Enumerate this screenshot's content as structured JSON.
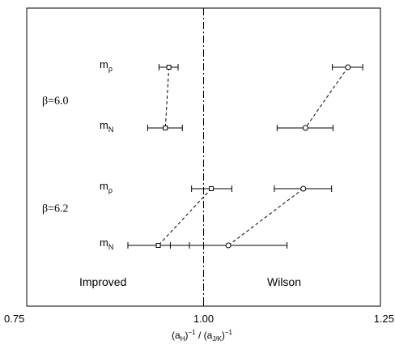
{
  "chart_data": {
    "type": "scatter",
    "xlabel": {
      "open": "(a",
      "sub1": "H",
      "mid": ")",
      "sup1": "−1",
      "slash": " / (a",
      "sub2": "J/K",
      "close": ")",
      "sup2": "−1"
    },
    "xlim": [
      0.75,
      1.25
    ],
    "x_ticks": [
      0.75,
      1.0,
      1.25
    ],
    "x_tick_labels": [
      "0.75",
      "1.00",
      "1.25"
    ],
    "reference_line_x": 1.0,
    "row_labels": [
      {
        "row": 0,
        "base": "m",
        "sub": "ρ"
      },
      {
        "row": 1,
        "base": "m",
        "sub": "N"
      },
      {
        "row": 2,
        "base": "m",
        "sub": "ρ"
      },
      {
        "row": 3,
        "base": "m",
        "sub": "N"
      }
    ],
    "group_labels": [
      {
        "text": "β=6.0",
        "row_pos": 0.55
      },
      {
        "text": "β=6.2",
        "row_pos": 2.35
      }
    ],
    "region_labels": {
      "left": "Improved",
      "right": "Wilson"
    },
    "series": [
      {
        "name": "Improved",
        "marker": "square",
        "points": [
          {
            "row": 0,
            "x": 0.951,
            "xerr_low": 0.937,
            "xerr_high": 0.964
          },
          {
            "row": 1,
            "x": 0.946,
            "xerr_low": 0.921,
            "xerr_high": 0.97
          },
          {
            "row": 2,
            "x": 1.011,
            "xerr_low": 0.983,
            "xerr_high": 1.04
          },
          {
            "row": 3,
            "x": 0.936,
            "xerr_low": 0.893,
            "xerr_high": 0.98
          }
        ],
        "connect": [
          [
            0,
            1
          ],
          [
            2,
            3
          ]
        ]
      },
      {
        "name": "Wilson",
        "marker": "circle",
        "points": [
          {
            "row": 0,
            "x": 1.204,
            "xerr_low": 1.182,
            "xerr_high": 1.225
          },
          {
            "row": 1,
            "x": 1.144,
            "xerr_low": 1.104,
            "xerr_high": 1.183
          },
          {
            "row": 2,
            "x": 1.141,
            "xerr_low": 1.1,
            "xerr_high": 1.181
          },
          {
            "row": 3,
            "x": 1.035,
            "xerr_low": 0.953,
            "xerr_high": 1.118
          }
        ],
        "connect": [
          [
            0,
            1
          ],
          [
            2,
            3
          ]
        ]
      }
    ]
  }
}
